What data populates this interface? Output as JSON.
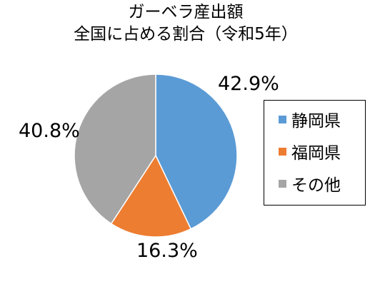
{
  "chart_data": {
    "type": "pie",
    "title_lines": [
      "ガーベラ産出額",
      "全国に占める割合（令和5年）"
    ],
    "slices": [
      {
        "name": "静岡県",
        "value": 42.9,
        "label": "42.9%",
        "color": "#5b9bd5"
      },
      {
        "name": "福岡県",
        "value": 16.3,
        "label": "16.3%",
        "color": "#ed7d31"
      },
      {
        "name": "その他",
        "value": 40.8,
        "label": "40.8%",
        "color": "#a5a5a5"
      }
    ],
    "start_angle_deg": 0,
    "direction": "clockwise",
    "legend_position": "right"
  }
}
